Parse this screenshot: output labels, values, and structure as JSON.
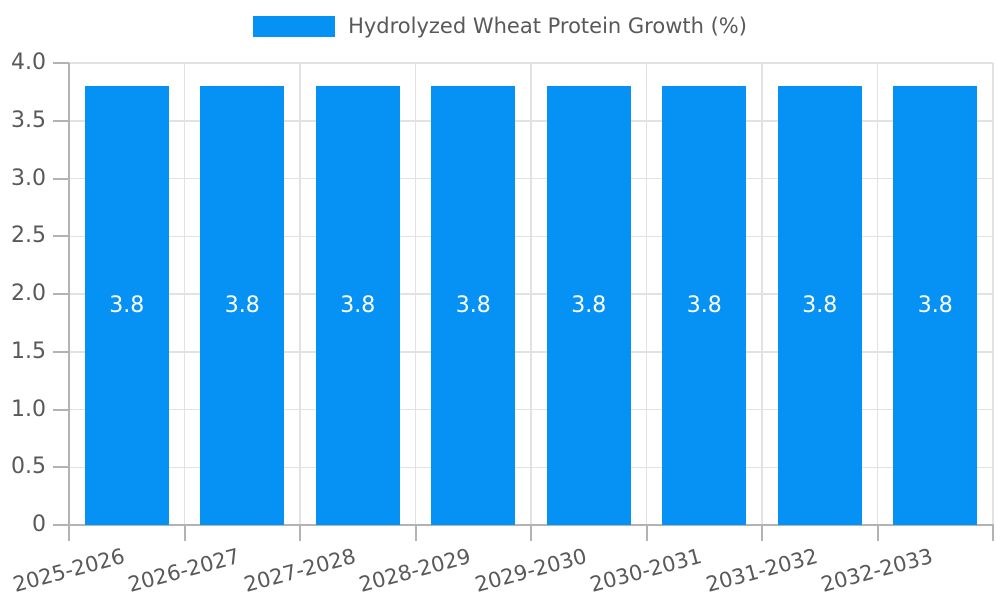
{
  "legend": {
    "label": "Hydrolyzed Wheat Protein Growth (%)"
  },
  "chart_data": {
    "type": "bar",
    "title": "Hydrolyzed Wheat Protein Growth (%)",
    "categories": [
      "2025-2026",
      "2026-2027",
      "2027-2028",
      "2028-2029",
      "2029-2030",
      "2030-2031",
      "2031-2032",
      "2032-2033"
    ],
    "series": [
      {
        "name": "Hydrolyzed Wheat Protein Growth (%)",
        "values": [
          3.8,
          3.8,
          3.8,
          3.8,
          3.8,
          3.8,
          3.8,
          3.8
        ]
      }
    ],
    "value_labels": [
      "3.8",
      "3.8",
      "3.8",
      "3.8",
      "3.8",
      "3.8",
      "3.8",
      "3.8"
    ],
    "xlabel": "",
    "ylabel": "",
    "ylim": [
      0,
      4.0
    ],
    "ytick_values": [
      0,
      0.5,
      1.0,
      1.5,
      2.0,
      2.5,
      3.0,
      3.5,
      4.0
    ],
    "ytick_labels": [
      "0",
      "0.5",
      "1.0",
      "1.5",
      "2.0",
      "2.5",
      "3.0",
      "3.5",
      "4.0"
    ],
    "grid": true,
    "legend_position": "top-center",
    "x_label_rotation_deg": -15,
    "colors": {
      "bar": "#0692f5",
      "bar_label": "#ffffff",
      "grid": "#e2e2e2",
      "axis": "#b3b3b3",
      "tick_label": "#595959",
      "background": "#ffffff"
    }
  }
}
